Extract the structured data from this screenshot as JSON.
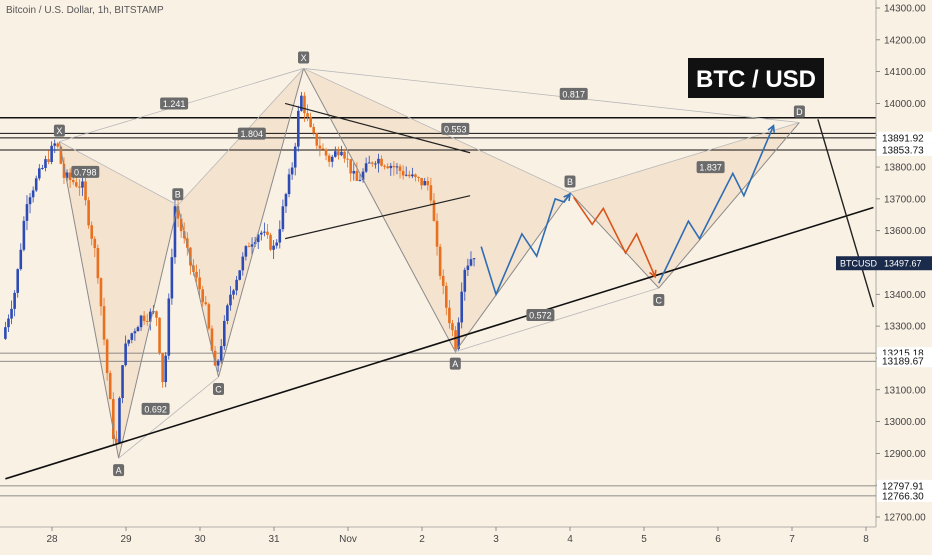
{
  "chart_data": {
    "type": "candlestick",
    "title": "Bitcoin / U.S. Dollar, 1h, BITSTAMP",
    "big_title": "BTC / USD",
    "symbol": "BTCUSD",
    "last_price": "13497.67",
    "ylim": [
      12640,
      14340
    ],
    "y_ticks": [
      12700,
      12800,
      12900,
      13000,
      13100,
      13200,
      13300,
      13400,
      13500,
      13600,
      13700,
      13800,
      13900,
      14000,
      14100,
      14200,
      14300
    ],
    "y_tick_labels": [
      "12700.00",
      "12800.00",
      "12900.00",
      "13000.00",
      "13100.00",
      "13200.00",
      "13300.00",
      "13400.00",
      "13500.00",
      "13600.00",
      "13700.00",
      "13800.00",
      "13900.00",
      "14000.00",
      "14100.00",
      "14200.00",
      "14300.00"
    ],
    "x_ticks": [
      {
        "label": "28",
        "t": 0
      },
      {
        "label": "29",
        "t": 1
      },
      {
        "label": "30",
        "t": 2
      },
      {
        "label": "31",
        "t": 3
      },
      {
        "label": "Nov",
        "t": 4
      },
      {
        "label": "2",
        "t": 5
      },
      {
        "label": "3",
        "t": 6
      },
      {
        "label": "4",
        "t": 7
      },
      {
        "label": "5",
        "t": 8
      },
      {
        "label": "6",
        "t": 9
      },
      {
        "label": "7",
        "t": 10
      },
      {
        "label": "8",
        "t": 11
      }
    ],
    "x_range": [
      -0.63,
      11.1
    ],
    "price_levels": [
      {
        "value": 13891.92,
        "label": "13891.92"
      },
      {
        "value": 13853.73,
        "label": "13853.73"
      },
      {
        "value": 13215.18,
        "label": "13215.18"
      },
      {
        "value": 13189.67,
        "label": "13189.67"
      },
      {
        "value": 12797.91,
        "label": "12797.91"
      },
      {
        "value": 12766.3,
        "label": "12766.30"
      }
    ],
    "horizontal_lines": [
      13955,
      13906,
      13891.92,
      13853.73
    ],
    "support_line": [
      {
        "t": -0.63,
        "v": 12820
      },
      {
        "t": 11.1,
        "v": 13673
      }
    ],
    "triangle_upper": [
      {
        "t": 3.15,
        "v": 14000
      },
      {
        "t": 5.65,
        "v": 13845
      }
    ],
    "triangle_lower": [
      {
        "t": 3.15,
        "v": 13575
      },
      {
        "t": 5.65,
        "v": 13710
      }
    ],
    "steep_line": [
      {
        "t": 10.35,
        "v": 13950
      },
      {
        "t": 11.1,
        "v": 13360
      }
    ],
    "pattern1": {
      "points": [
        {
          "name": "X",
          "t": 0.1,
          "v": 13880
        },
        {
          "name": "A",
          "t": 0.9,
          "v": 12885
        },
        {
          "name": "B",
          "t": 1.7,
          "v": 13680
        },
        {
          "name": "C",
          "t": 2.25,
          "v": 13140
        },
        {
          "name": "D",
          "t": 3.4,
          "v": 14110
        }
      ],
      "ratios": [
        {
          "label": "0.798",
          "t": 0.45,
          "v": 13785
        },
        {
          "label": "0.692",
          "t": 1.4,
          "v": 13040
        },
        {
          "label": "1.241",
          "t": 1.65,
          "v": 14000
        },
        {
          "label": "1.804",
          "t": 2.7,
          "v": 13905
        }
      ]
    },
    "pattern2": {
      "points": [
        {
          "name": "X",
          "t": 3.4,
          "v": 14110
        },
        {
          "name": "A",
          "t": 5.45,
          "v": 13220
        },
        {
          "name": "B",
          "t": 7.0,
          "v": 13720
        },
        {
          "name": "C",
          "t": 8.2,
          "v": 13420
        },
        {
          "name": "D",
          "t": 10.1,
          "v": 13940
        }
      ],
      "ratios": [
        {
          "label": "0.553",
          "t": 5.45,
          "v": 13920
        },
        {
          "label": "0.572",
          "t": 6.6,
          "v": 13335
        },
        {
          "label": "0.817",
          "t": 7.05,
          "v": 14030
        },
        {
          "label": "1.837",
          "t": 8.9,
          "v": 13800
        }
      ]
    },
    "projection_blue_1": [
      {
        "t": 5.8,
        "v": 13550
      },
      {
        "t": 6.0,
        "v": 13400
      },
      {
        "t": 6.35,
        "v": 13590
      },
      {
        "t": 6.55,
        "v": 13520
      },
      {
        "t": 6.8,
        "v": 13700
      },
      {
        "t": 6.92,
        "v": 13690
      },
      {
        "t": 7.0,
        "v": 13715
      }
    ],
    "projection_red": [
      {
        "t": 7.05,
        "v": 13705
      },
      {
        "t": 7.3,
        "v": 13620
      },
      {
        "t": 7.45,
        "v": 13670
      },
      {
        "t": 7.75,
        "v": 13530
      },
      {
        "t": 7.9,
        "v": 13590
      },
      {
        "t": 8.15,
        "v": 13455
      }
    ],
    "projection_blue_2": [
      {
        "t": 8.2,
        "v": 13435
      },
      {
        "t": 8.6,
        "v": 13630
      },
      {
        "t": 8.75,
        "v": 13575
      },
      {
        "t": 9.2,
        "v": 13780
      },
      {
        "t": 9.35,
        "v": 13710
      },
      {
        "t": 9.75,
        "v": 13930
      }
    ],
    "colors": {
      "up": "#2c4bb5",
      "down": "#e8701f",
      "projection_up": "#2e6db4",
      "projection_down": "#d9541a",
      "pattern_fill": "#e7c9a7",
      "label_bg": "#6b6b6b"
    }
  }
}
